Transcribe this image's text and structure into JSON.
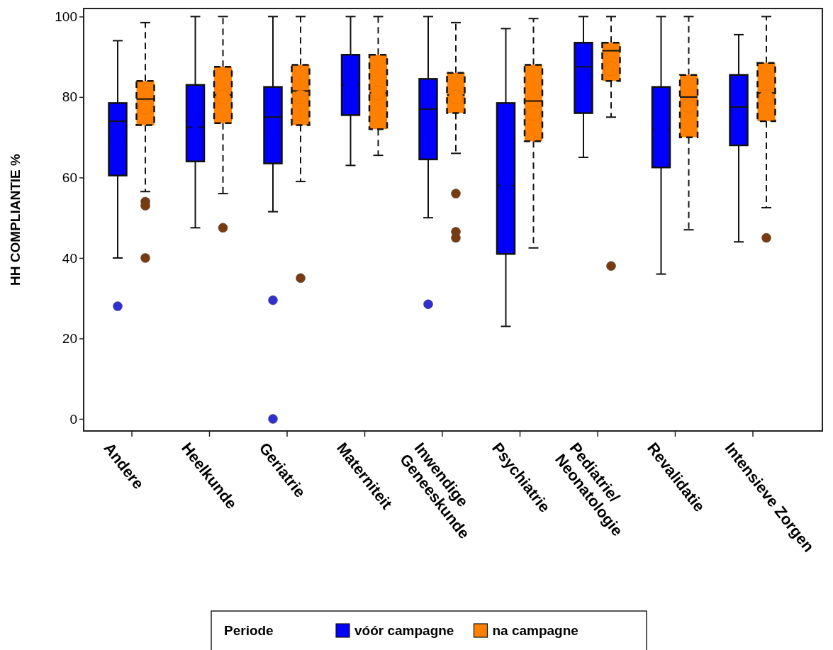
{
  "chart_data": {
    "type": "box",
    "ylabel": "HH COMPLIANTIE %",
    "legend_title": "Periode",
    "legend": "bottom",
    "categories": [
      "Andere",
      "Heelkunde",
      "Geriatrie",
      "Materniteit",
      "Inwendige\nGeneeskunde",
      "Psychiatrie",
      "Pediatrie/\nNeonatologie",
      "Revalidatie",
      "Intensieve Zorgen"
    ],
    "ylim": [
      -3,
      102
    ],
    "yticks": [
      0,
      20,
      40,
      60,
      80,
      100
    ],
    "series": [
      {
        "name": "vóór campagne",
        "color": "#0000ff",
        "line_style": "solid",
        "boxes": [
          {
            "low": 40,
            "q1": 60.5,
            "median": 74,
            "q3": 78.5,
            "high": 94,
            "mean": 69.5,
            "outliers": [
              28
            ]
          },
          {
            "low": 47.5,
            "q1": 64,
            "median": 72.5,
            "q3": 83,
            "high": 100,
            "mean": 74
          },
          {
            "low": 51.5,
            "q1": 63.5,
            "median": 75,
            "q3": 82.5,
            "high": 100,
            "mean": 72.5,
            "outliers": [
              29.5,
              0
            ]
          },
          {
            "low": 63,
            "q1": 75.5,
            "median": 83,
            "q3": 90.5,
            "high": 100,
            "mean": 83
          },
          {
            "low": 50,
            "q1": 64.5,
            "median": 77,
            "q3": 84.5,
            "high": 100,
            "mean": 74,
            "outliers": [
              28.5
            ]
          },
          {
            "low": 23,
            "q1": 41,
            "median": 58,
            "q3": 78.5,
            "high": 97,
            "mean": 59
          },
          {
            "low": 65,
            "q1": 76,
            "median": 87.5,
            "q3": 93.5,
            "high": 100,
            "mean": 85
          },
          {
            "low": 36,
            "q1": 62.5,
            "median": 72,
            "q3": 82.5,
            "high": 100,
            "mean": 72
          },
          {
            "low": 44,
            "q1": 68,
            "median": 77.5,
            "q3": 85.5,
            "high": 95.5,
            "mean": 75.5
          }
        ]
      },
      {
        "name": "na campagne",
        "color": "#ff8000",
        "line_style": "dashed",
        "boxes": [
          {
            "low": 56.5,
            "q1": 73,
            "median": 79.5,
            "q3": 84,
            "high": 98.5,
            "mean": 77.5,
            "outliers": [
              54,
              53,
              40
            ]
          },
          {
            "low": 56,
            "q1": 73.5,
            "median": 80.5,
            "q3": 87.5,
            "high": 100,
            "mean": 80,
            "outliers": [
              47.5
            ]
          },
          {
            "low": 59,
            "q1": 73,
            "median": 81.5,
            "q3": 88,
            "high": 100,
            "mean": 80,
            "outliers": [
              35
            ]
          },
          {
            "low": 65.5,
            "q1": 72,
            "median": 81,
            "q3": 90.5,
            "high": 100,
            "mean": 81
          },
          {
            "low": 66,
            "q1": 76,
            "median": 80.5,
            "q3": 86,
            "high": 98.5,
            "mean": 80,
            "outliers": [
              56,
              46.5,
              45
            ]
          },
          {
            "low": 42.5,
            "q1": 69,
            "median": 79,
            "q3": 88,
            "high": 99.5,
            "mean": 76
          },
          {
            "low": 75,
            "q1": 84,
            "median": 91.5,
            "q3": 93.5,
            "high": 100,
            "mean": 87,
            "outliers": [
              38
            ]
          },
          {
            "low": 47,
            "q1": 70,
            "median": 80,
            "q3": 85.5,
            "high": 100,
            "mean": 78
          },
          {
            "low": 52.5,
            "q1": 74,
            "median": 81,
            "q3": 88.5,
            "high": 100,
            "mean": 80,
            "outliers": [
              45
            ]
          }
        ]
      }
    ]
  }
}
